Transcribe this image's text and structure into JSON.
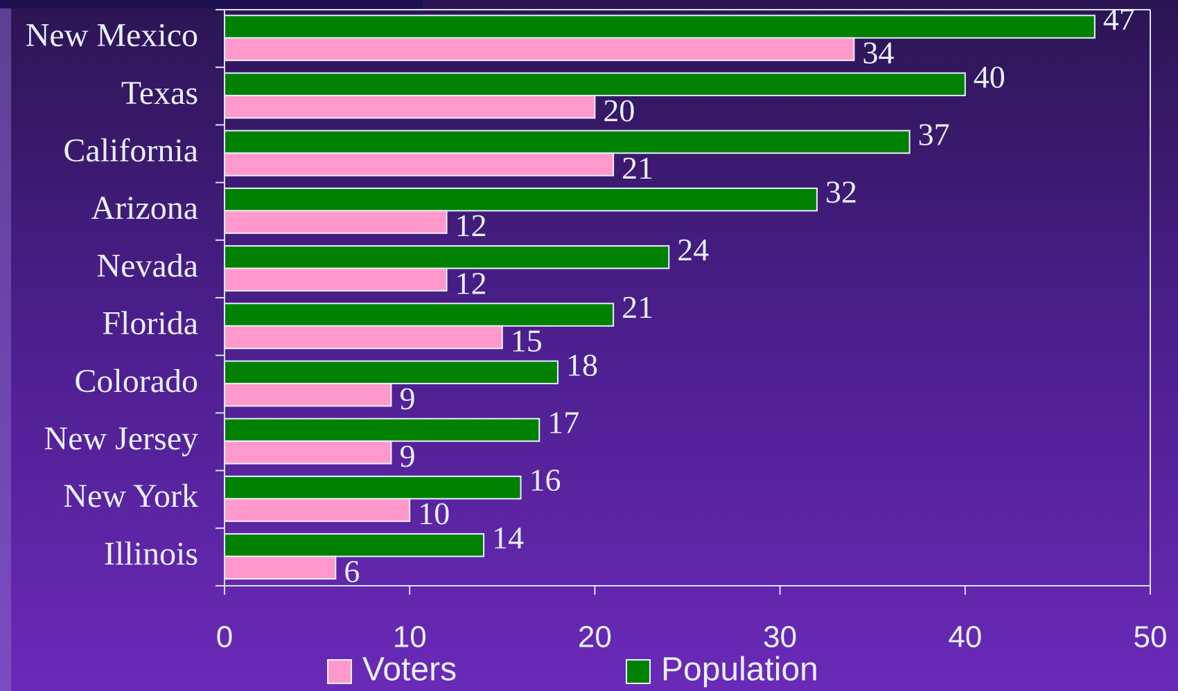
{
  "chart_data": {
    "type": "hbar",
    "categories": [
      "New Mexico",
      "Texas",
      "California",
      "Arizona",
      "Nevada",
      "Florida",
      "Colorado",
      "New Jersey",
      "New York",
      "Illinois"
    ],
    "series": [
      {
        "name": "Voters",
        "color": "#ff99cc",
        "values": [
          34,
          20,
          21,
          12,
          12,
          15,
          9,
          9,
          10,
          6
        ]
      },
      {
        "name": "Population",
        "color": "#008000",
        "values": [
          47,
          40,
          37,
          32,
          24,
          21,
          18,
          17,
          16,
          14
        ]
      }
    ],
    "xlim": [
      0,
      50
    ],
    "xticks": [
      0,
      10,
      20,
      30,
      40,
      50
    ],
    "legend": "bottom"
  }
}
